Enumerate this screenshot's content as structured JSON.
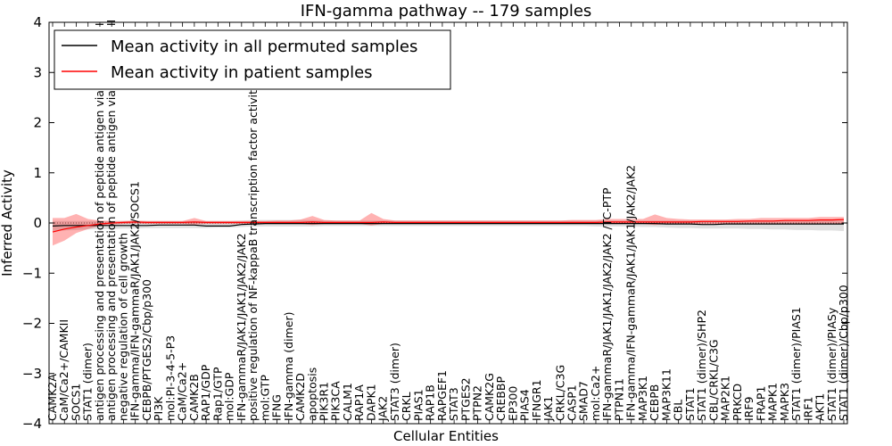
{
  "chart_data": {
    "type": "line",
    "title": "IFN-gamma pathway -- 179 samples",
    "xlabel": "Cellular Entities",
    "ylabel": "Inferred Activity",
    "ylim": [
      -4,
      4
    ],
    "yticks": [
      -4,
      -3,
      -2,
      -1,
      0,
      1,
      2,
      3,
      4
    ],
    "grid": false,
    "legend": {
      "position": "top-left",
      "entries": [
        {
          "label": "Mean activity in all permuted samples",
          "color": "#000000"
        },
        {
          "label": "Mean activity in patient samples",
          "color": "#ff0000"
        }
      ]
    },
    "categories": [
      "CAMK2A",
      "CaM/Ca2+/CAMKII",
      "SOCS1",
      "STAT1 (dimer)",
      "antigen processing and presentation of peptide antigen via MHC class I",
      "antigen processing and presentation of peptide antigen via MHC class II",
      "negative regulation of cell growth",
      "IFN-gamma/IFN-gammaR/JAK1/JAK2/SOCS1",
      "CEBPB/PTGES2/Cbp/p300",
      "PI3K",
      "mol:PI-3-4-5-P3",
      "CaM/Ca2+",
      "CAMK2B",
      "RAP1/GDP",
      "Rap1/GTP",
      "mol:GDP",
      "IFN-gammaR/JAK1/JAK1/JAK2/JAK2",
      "positive regulation of NF-kappaB transcription factor activity",
      "mol:GTP",
      "IFNG",
      "IFN-gamma (dimer)",
      "CAMK2D",
      "apoptosis",
      "PIK3R1",
      "PIK3CA",
      "CALM1",
      "RAP1A",
      "DAPK1",
      "JAK2",
      "STAT3 (dimer)",
      "CRKL",
      "PIAS1",
      "RAP1B",
      "RAPGEF1",
      "STAT3",
      "PTGES2",
      "PTPN2",
      "CAMK2G",
      "CREBBP",
      "EP300",
      "PIAS4",
      "IFNGR1",
      "JAK1",
      "CRKL/C3G",
      "CASP1",
      "SMAD7",
      "mol:Ca2+",
      "IFN-gammaR/JAK1/JAK1/JAK2/JAK2 /TC-PTP",
      "PTPN11",
      "IFN-gamma/IFN-gammaR/JAK1/JAK1/JAK2/JAK2",
      "MAP3K1",
      "CEBPB",
      "MAP3K11",
      "CBL",
      "STAT1",
      "STAT1 (dimer)/SHP2",
      "CBL/CRKL/C3G",
      "MAP2K1",
      "PRKCD",
      "IRF9",
      "FRAP1",
      "MAPK1",
      "MAPK3",
      "STAT1 (dimer)/PIAS1",
      "IRF1",
      "AKT1",
      "STAT1 (dimer)/PIASy",
      "STAT1 (dimer)/Cbp/p300"
    ],
    "series": [
      {
        "name": "Mean activity in all permuted samples",
        "color": "#000000",
        "values": [
          -0.06,
          -0.05,
          -0.05,
          -0.05,
          -0.05,
          -0.05,
          -0.05,
          -0.05,
          -0.05,
          -0.04,
          -0.04,
          -0.04,
          -0.04,
          -0.06,
          -0.06,
          -0.06,
          -0.03,
          -0.02,
          -0.01,
          -0.01,
          -0.01,
          -0.01,
          -0.01,
          -0.01,
          -0.01,
          -0.01,
          -0.01,
          -0.01,
          -0.01,
          -0.01,
          -0.01,
          -0.01,
          -0.01,
          -0.01,
          -0.01,
          -0.01,
          -0.01,
          -0.01,
          -0.01,
          -0.01,
          -0.01,
          -0.01,
          -0.01,
          -0.01,
          -0.01,
          -0.01,
          -0.01,
          -0.01,
          -0.01,
          -0.01,
          -0.01,
          -0.01,
          -0.02,
          -0.02,
          -0.02,
          -0.03,
          -0.03,
          -0.02,
          -0.02,
          -0.02,
          -0.02,
          -0.02,
          -0.02,
          -0.02,
          -0.02,
          -0.02,
          -0.02,
          -0.02
        ],
        "band": {
          "lower": [
            -0.16,
            -0.15,
            -0.14,
            -0.13,
            -0.12,
            -0.12,
            -0.11,
            -0.11,
            -0.1,
            -0.1,
            -0.1,
            -0.1,
            -0.1,
            -0.1,
            -0.09,
            -0.09,
            -0.08,
            -0.07,
            -0.07,
            -0.07,
            -0.07,
            -0.07,
            -0.07,
            -0.06,
            -0.06,
            -0.06,
            -0.06,
            -0.06,
            -0.06,
            -0.06,
            -0.06,
            -0.06,
            -0.06,
            -0.06,
            -0.06,
            -0.06,
            -0.06,
            -0.06,
            -0.06,
            -0.06,
            -0.06,
            -0.06,
            -0.06,
            -0.06,
            -0.06,
            -0.06,
            -0.07,
            -0.07,
            -0.07,
            -0.07,
            -0.08,
            -0.08,
            -0.09,
            -0.1,
            -0.1,
            -0.11,
            -0.11,
            -0.11,
            -0.11,
            -0.12,
            -0.12,
            -0.13,
            -0.13,
            -0.14,
            -0.14,
            -0.15,
            -0.15,
            -0.16
          ],
          "upper": [
            0.04,
            0.04,
            0.04,
            0.04,
            0.04,
            0.04,
            0.04,
            0.04,
            0.04,
            0.04,
            0.04,
            0.04,
            0.04,
            0.04,
            0.04,
            0.04,
            0.05,
            0.06,
            0.06,
            0.06,
            0.06,
            0.06,
            0.06,
            0.05,
            0.05,
            0.05,
            0.05,
            0.05,
            0.05,
            0.05,
            0.05,
            0.05,
            0.05,
            0.05,
            0.05,
            0.05,
            0.05,
            0.05,
            0.05,
            0.05,
            0.05,
            0.05,
            0.05,
            0.05,
            0.05,
            0.05,
            0.05,
            0.05,
            0.05,
            0.05,
            0.05,
            0.05,
            0.05,
            0.05,
            0.05,
            0.05,
            0.05,
            0.05,
            0.05,
            0.05,
            0.05,
            0.05,
            0.05,
            0.05,
            0.05,
            0.05,
            0.05,
            0.05
          ]
        }
      },
      {
        "name": "Mean activity in patient samples",
        "color": "#ff0000",
        "values": [
          -0.18,
          -0.12,
          -0.08,
          -0.05,
          -0.02,
          0.0,
          0.01,
          0.02,
          0.01,
          0.01,
          0.01,
          0.01,
          0.02,
          0.01,
          0.01,
          0.01,
          0.01,
          0.01,
          0.01,
          0.01,
          0.01,
          0.01,
          0.02,
          0.01,
          0.01,
          0.01,
          0.01,
          0.01,
          0.02,
          0.01,
          0.01,
          0.01,
          0.01,
          0.01,
          0.01,
          0.01,
          0.01,
          0.01,
          0.01,
          0.01,
          0.01,
          0.01,
          0.01,
          0.01,
          0.01,
          0.01,
          0.01,
          0.02,
          0.02,
          0.02,
          0.02,
          0.02,
          0.02,
          0.02,
          0.02,
          0.03,
          0.03,
          0.03,
          0.03,
          0.04,
          0.04,
          0.04,
          0.05,
          0.05,
          0.05,
          0.06,
          0.06,
          0.07
        ],
        "band": {
          "lower": [
            -0.45,
            -0.35,
            -0.2,
            -0.12,
            -0.06,
            -0.03,
            -0.02,
            -0.01,
            -0.02,
            -0.02,
            -0.02,
            -0.02,
            -0.03,
            -0.02,
            -0.02,
            -0.02,
            -0.02,
            -0.02,
            -0.02,
            -0.02,
            -0.02,
            -0.02,
            -0.04,
            -0.02,
            -0.02,
            -0.02,
            -0.02,
            -0.05,
            -0.02,
            -0.02,
            -0.02,
            -0.02,
            -0.02,
            -0.02,
            -0.02,
            -0.02,
            -0.02,
            -0.02,
            -0.02,
            -0.02,
            -0.02,
            -0.02,
            -0.02,
            -0.02,
            -0.02,
            -0.02,
            -0.02,
            -0.02,
            -0.02,
            -0.02,
            -0.02,
            -0.04,
            -0.02,
            -0.02,
            -0.02,
            -0.02,
            -0.02,
            -0.02,
            -0.02,
            -0.02,
            -0.02,
            -0.02,
            -0.02,
            -0.02,
            -0.02,
            -0.02,
            -0.02,
            -0.02
          ],
          "upper": [
            0.1,
            0.1,
            0.18,
            0.08,
            0.05,
            0.04,
            0.04,
            0.05,
            0.04,
            0.04,
            0.04,
            0.04,
            0.1,
            0.04,
            0.04,
            0.04,
            0.04,
            0.04,
            0.04,
            0.05,
            0.05,
            0.07,
            0.14,
            0.06,
            0.05,
            0.05,
            0.05,
            0.2,
            0.08,
            0.05,
            0.05,
            0.05,
            0.05,
            0.05,
            0.05,
            0.05,
            0.05,
            0.05,
            0.05,
            0.05,
            0.05,
            0.05,
            0.05,
            0.05,
            0.06,
            0.06,
            0.06,
            0.08,
            0.08,
            0.08,
            0.08,
            0.17,
            0.1,
            0.08,
            0.07,
            0.07,
            0.07,
            0.07,
            0.08,
            0.08,
            0.1,
            0.1,
            0.1,
            0.1,
            0.1,
            0.12,
            0.12,
            0.12
          ]
        }
      }
    ]
  }
}
